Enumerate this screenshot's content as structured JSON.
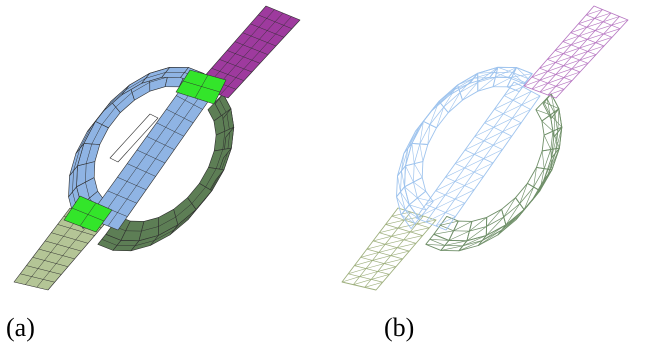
{
  "figure": {
    "panel_a": {
      "label": "(a)",
      "style": "shaded-quad-mesh"
    },
    "panel_b": {
      "label": "(b)",
      "style": "triangle-wireframe"
    },
    "colors": {
      "left_conductor": "#b4c596",
      "ring_top": "#8fb4e4",
      "ring_bottom": "#5d7e55",
      "right_conductor": "#9e3a9e",
      "interface": "#33e52a",
      "wire_left": "#9fb07e",
      "wire_ring_top": "#9fc4ee",
      "wire_ring_bottom": "#6f8f68",
      "wire_right": "#b777c2",
      "mesh_edge": "#2f2f2f"
    }
  }
}
